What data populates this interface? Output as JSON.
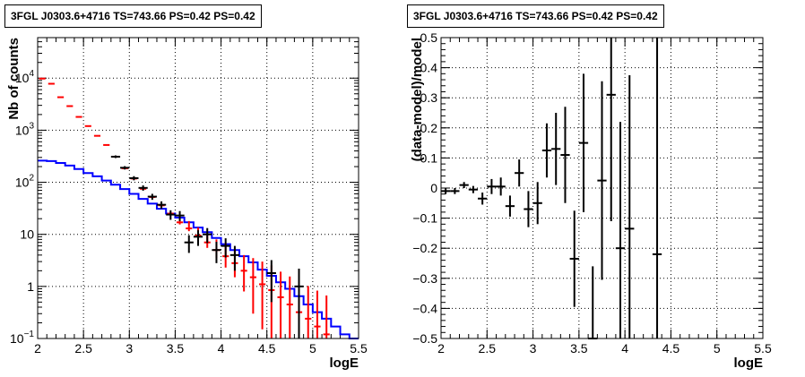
{
  "chart_data": [
    {
      "type": "histogram",
      "title": "3FGL J0303.6+4716 TS=743.66 PS=0.42 PS=0.42",
      "xlabel": "logE",
      "ylabel": "Nb of counts",
      "xlim": [
        2,
        5.5
      ],
      "ylim": [
        0.1,
        60000
      ],
      "yscale": "log",
      "grid": true,
      "xticks": [
        "2",
        "2.5",
        "3",
        "3.5",
        "4",
        "4.5",
        "5",
        "5.5"
      ],
      "yticks": [
        "10",
        "1",
        "10"
      ],
      "yticks_log": [
        {
          "value": 0.1,
          "base": "10",
          "exp": "−1"
        },
        {
          "value": 1,
          "base": "1",
          "exp": ""
        },
        {
          "value": 10,
          "base": "10",
          "exp": ""
        },
        {
          "value": 100,
          "base": "10",
          "exp": "2"
        },
        {
          "value": 1000,
          "base": "10",
          "exp": "3"
        },
        {
          "value": 10000,
          "base": "10",
          "exp": "4"
        }
      ],
      "bin_edges": [
        2.0,
        2.1,
        2.2,
        2.3,
        2.4,
        2.5,
        2.6,
        2.7,
        2.8,
        2.9,
        3.0,
        3.1,
        3.2,
        3.3,
        3.4,
        3.5,
        3.6,
        3.7,
        3.8,
        3.9,
        4.0,
        4.1,
        4.2,
        4.3,
        4.4,
        4.5,
        4.6,
        4.7,
        4.8,
        4.9,
        5.0,
        5.1,
        5.2,
        5.3,
        5.4,
        5.5
      ],
      "series": [
        {
          "name": "",
          "style": "step",
          "color": "#0000ff",
          "values": [
            260,
            255,
            235,
            210,
            180,
            150,
            130,
            108,
            90,
            74,
            60,
            48,
            39,
            31,
            25,
            21,
            17,
            13.5,
            11,
            8.5,
            6.5,
            5,
            3.8,
            2.9,
            2.1,
            1.6,
            1.2,
            0.9,
            0.65,
            0.45,
            0.32,
            0.24,
            0.17,
            0.12,
            0.1
          ]
        },
        {
          "name": "",
          "style": "errorbar",
          "color": "#ff0000",
          "x": [
            2.05,
            2.15,
            2.25,
            2.35,
            2.45,
            2.55,
            2.65,
            2.75,
            2.85,
            2.95,
            3.05,
            3.15,
            3.25,
            3.35,
            3.45,
            3.55,
            3.65,
            3.75,
            3.85,
            3.95,
            4.05,
            4.15,
            4.25,
            4.35,
            4.45,
            4.55,
            4.65,
            4.75,
            4.85,
            4.95,
            5.05,
            5.15
          ],
          "y": [
            9800,
            7800,
            4300,
            2900,
            1800,
            1200,
            780,
            520,
            310,
            185,
            118,
            75,
            52,
            36,
            25,
            17,
            13,
            9.5,
            7,
            5,
            3.8,
            2.8,
            2,
            1.5,
            1.1,
            0.85,
            0.62,
            0.45,
            0.32,
            0.24,
            0.17,
            0.12
          ],
          "err_lo": [
            0,
            0,
            0,
            0,
            0,
            0,
            0,
            0,
            0,
            0,
            3,
            2,
            2,
            2,
            1.5,
            1.5,
            1.5,
            1.5,
            1.5,
            1.5,
            1.5,
            1.3,
            1.2,
            1.2,
            0.95,
            0.8,
            0.58,
            0.44,
            0.31,
            0.235,
            0.165,
            0.118
          ],
          "err_hi": [
            0,
            0,
            0,
            0,
            0,
            0,
            0,
            0,
            0,
            0,
            3,
            2,
            2,
            2,
            2,
            2,
            5,
            4,
            3.5,
            3,
            3,
            2.5,
            2,
            2,
            1.9,
            1.7,
            1.3,
            1.1,
            0.9,
            0.78,
            0.66,
            0.55
          ]
        },
        {
          "name": "",
          "style": "errorbar",
          "color": "#000000",
          "x": [
            2.85,
            2.95,
            3.05,
            3.15,
            3.25,
            3.35,
            3.45,
            3.55,
            3.65,
            3.75,
            3.85,
            3.95,
            4.05,
            4.15,
            4.55,
            4.85
          ],
          "y": [
            310,
            190,
            120,
            78,
            53,
            37,
            24,
            23,
            7,
            9,
            10,
            5,
            6,
            4,
            1.8,
            1.0
          ],
          "err_lo": [
            18,
            14,
            11,
            9,
            7,
            6,
            5,
            5,
            2.6,
            3,
            3.2,
            2.2,
            2.4,
            2,
            1.3,
            1.0
          ],
          "err_hi": [
            18,
            14,
            11,
            9,
            7,
            6,
            5,
            5,
            2.6,
            3,
            3.2,
            2.2,
            2.4,
            2,
            1.4,
            1.2
          ],
          "xerr": 0.05
        }
      ]
    },
    {
      "type": "errorbar",
      "title": "3FGL J0303.6+4716 TS=743.66 PS=0.42 PS=0.42",
      "xlabel": "logE",
      "ylabel": "(data-model)/model",
      "xlim": [
        2,
        5.5
      ],
      "ylim": [
        -0.5,
        0.5
      ],
      "grid": true,
      "xticks": [
        "2",
        "2.5",
        "3",
        "3.5",
        "4",
        "4.5",
        "5",
        "5.5"
      ],
      "yticks": [
        "0.5",
        "0.4",
        "0.3",
        "0.2",
        "0.1",
        "0",
        "−0.1",
        "−0.2",
        "−0.3",
        "−0.4",
        "−0.5"
      ],
      "series": [
        {
          "name": "",
          "color": "#000000",
          "x": [
            2.05,
            2.15,
            2.25,
            2.35,
            2.45,
            2.55,
            2.65,
            2.75,
            2.85,
            2.95,
            3.05,
            3.15,
            3.25,
            3.35,
            3.45,
            3.55,
            3.65,
            3.75,
            3.85,
            3.95,
            4.05,
            4.35
          ],
          "y": [
            -0.01,
            -0.01,
            0.01,
            -0.005,
            -0.035,
            0.005,
            0.005,
            -0.06,
            0.05,
            -0.07,
            -0.05,
            0.125,
            0.13,
            0.11,
            -0.235,
            0.15,
            -0.5,
            0.025,
            0.31,
            -0.2,
            -0.135,
            -0.22
          ],
          "yerr": [
            0.01,
            0.01,
            0.01,
            0.012,
            0.02,
            0.025,
            0.03,
            0.035,
            0.045,
            0.06,
            0.07,
            0.09,
            0.12,
            0.16,
            0.16,
            0.23,
            0.24,
            0.33,
            0.42,
            0.42,
            0.51,
            0.75
          ],
          "xerr": 0.05
        }
      ]
    }
  ]
}
